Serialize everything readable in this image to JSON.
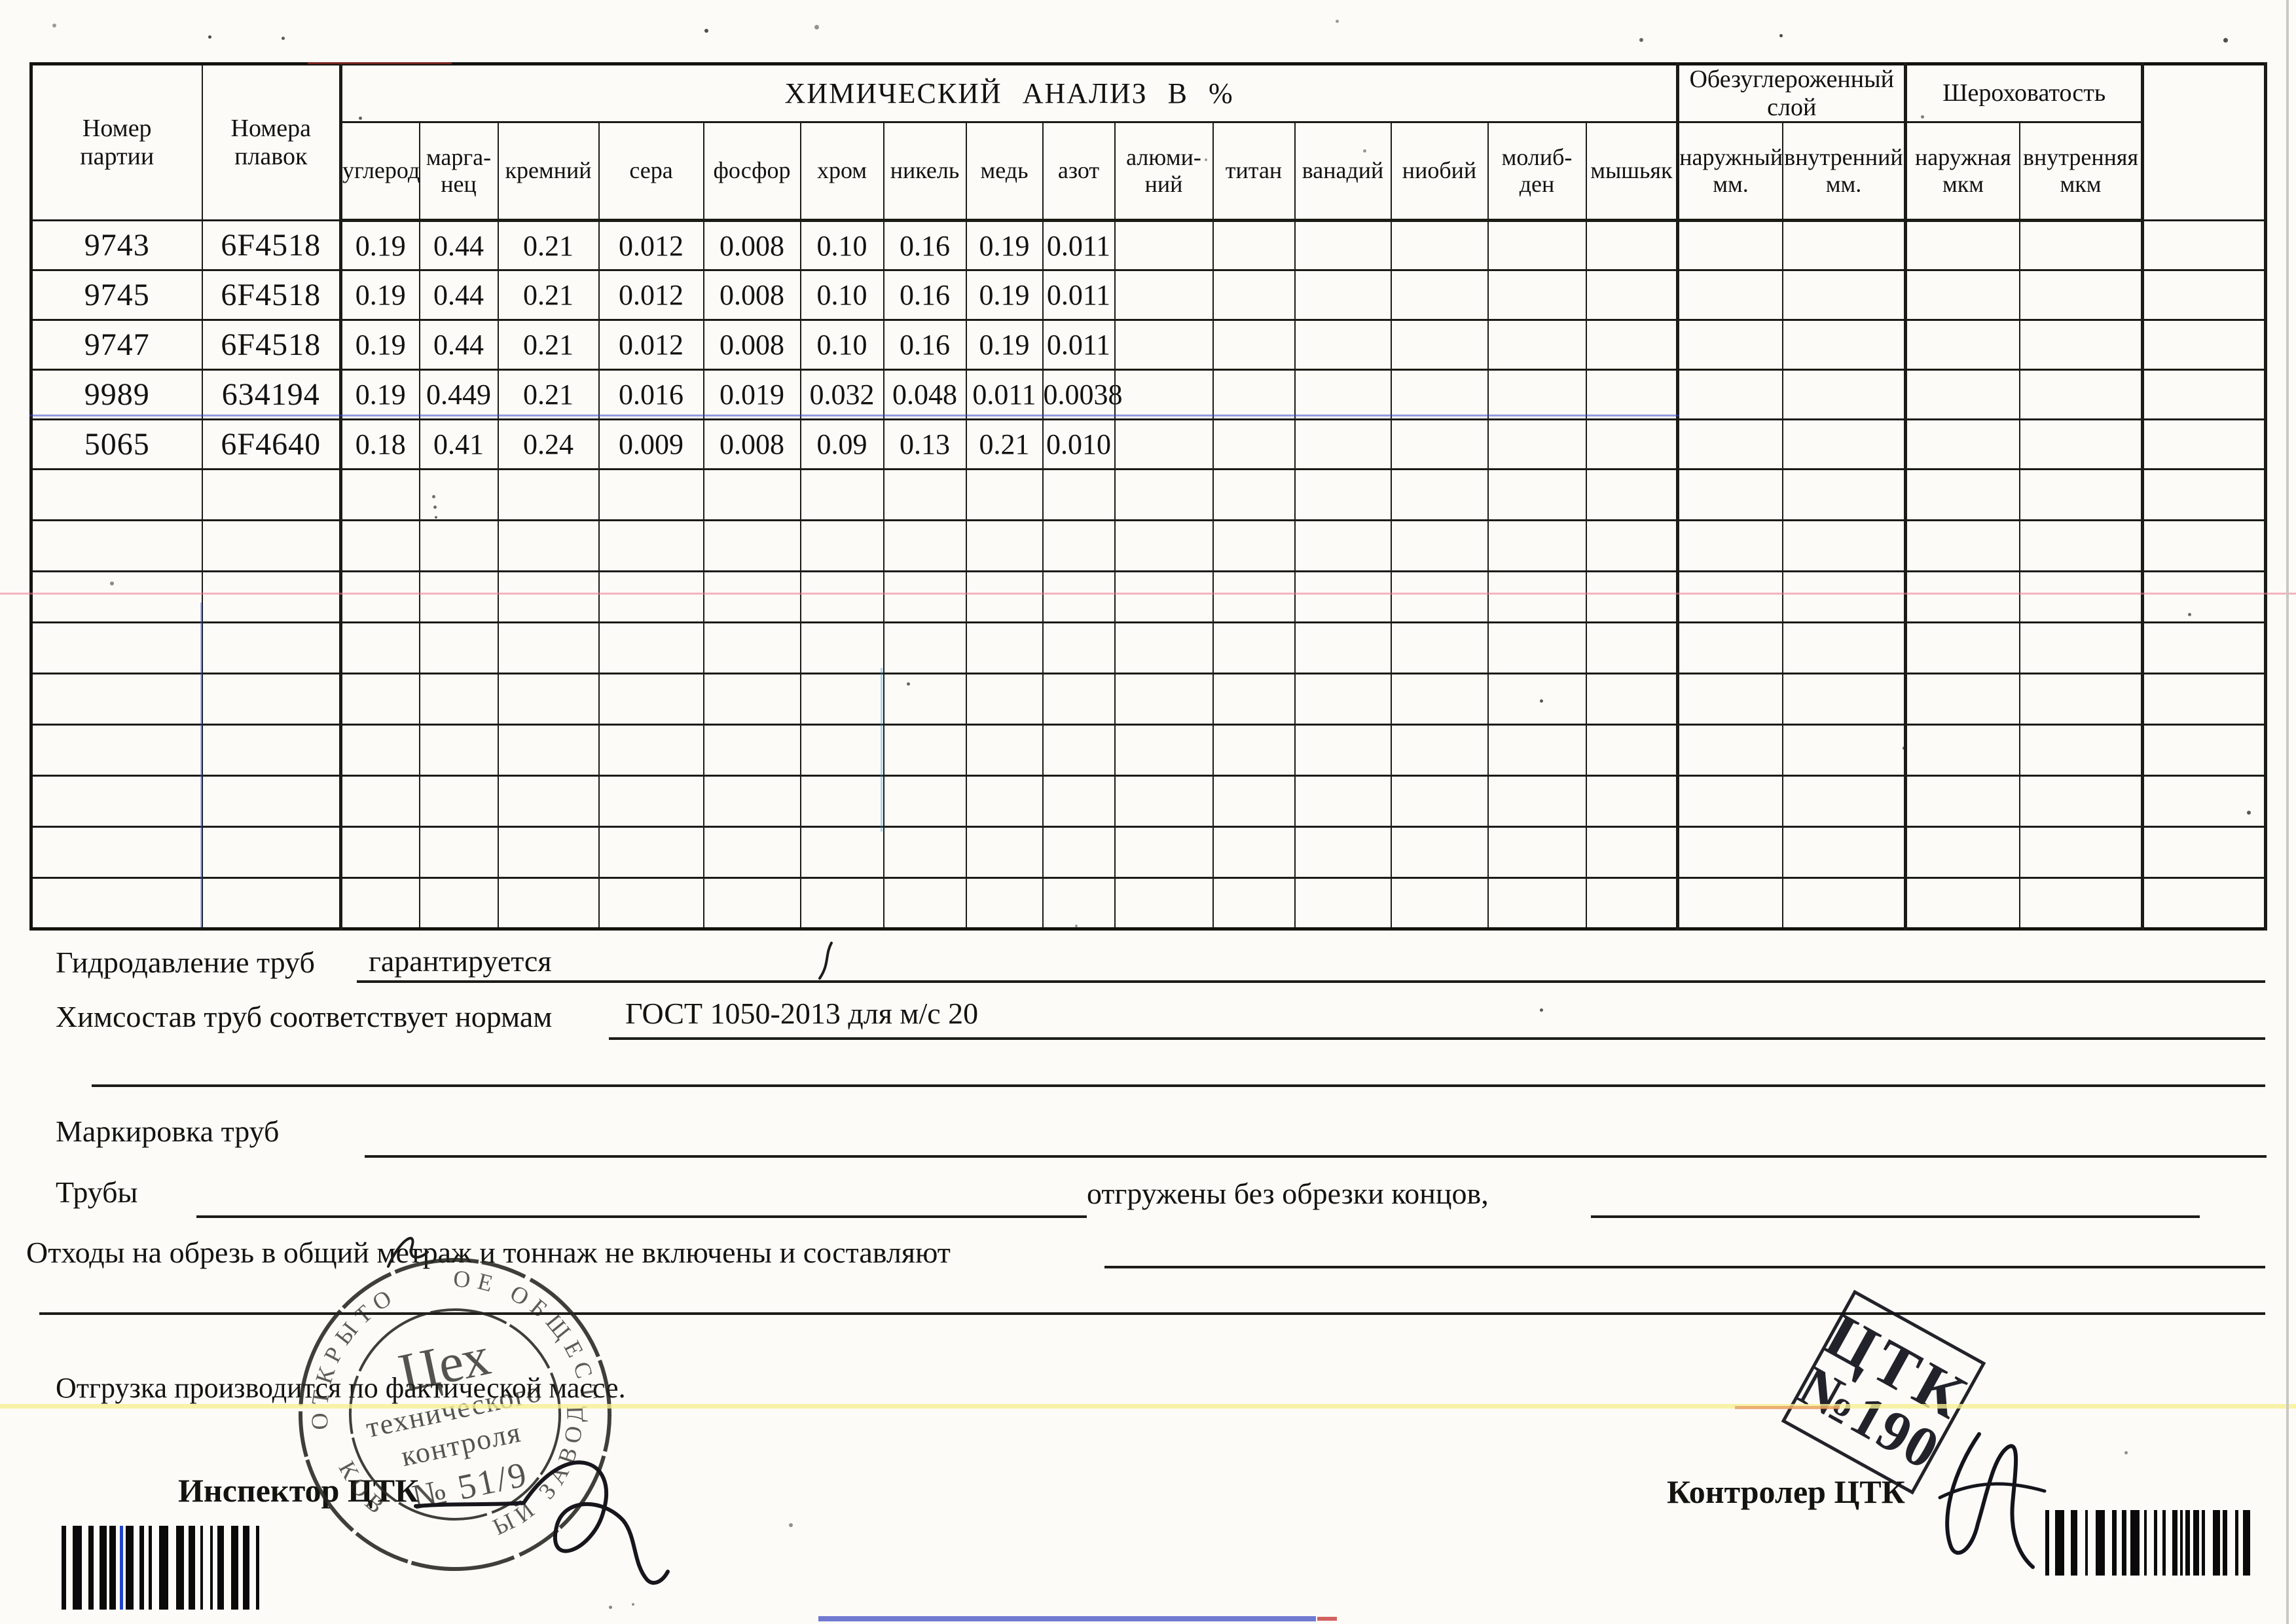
{
  "table": {
    "party_col_label": "Номер\nпартии",
    "melts_col_label": "Номера\nплавок",
    "chem_group_label": "ХИМИЧЕСКИЙ АНАЛИЗ В %",
    "chem_columns": [
      "углерод",
      "марга-\nнец",
      "кремний",
      "сера",
      "фосфор",
      "хром",
      "никель",
      "медь",
      "азот",
      "алюми-\nний",
      "титан",
      "ванадий",
      "ниобий",
      "молиб-\nден",
      "мышьяк"
    ],
    "decarb_group_label": "Обезуглероженный\nслой",
    "decarb_columns": [
      "наружный\nмм.",
      "внутренний\nмм."
    ],
    "rough_group_label": "Шероховатость",
    "rough_columns": [
      "наружная\nмкм",
      "внутренняя\nмкм"
    ],
    "rows": [
      {
        "party": "9743",
        "melt": "6F4518",
        "values": [
          "0.19",
          "0.44",
          "0.21",
          "0.012",
          "0.008",
          "0.10",
          "0.16",
          "0.19",
          "0.011"
        ]
      },
      {
        "party": "9745",
        "melt": "6F4518",
        "values": [
          "0.19",
          "0.44",
          "0.21",
          "0.012",
          "0.008",
          "0.10",
          "0.16",
          "0.19",
          "0.011"
        ]
      },
      {
        "party": "9747",
        "melt": "6F4518",
        "values": [
          "0.19",
          "0.44",
          "0.21",
          "0.012",
          "0.008",
          "0.10",
          "0.16",
          "0.19",
          "0.011"
        ]
      },
      {
        "party": "9989",
        "melt": "634194",
        "values": [
          "0.19",
          "0.449",
          "0.21",
          "0.016",
          "0.019",
          "0.032",
          "0.048",
          "0.011",
          "0.0038"
        ]
      },
      {
        "party": "5065",
        "melt": "6F4640",
        "values": [
          "0.18",
          "0.41",
          "0.24",
          "0.009",
          "0.008",
          "0.09",
          "0.13",
          "0.21",
          "0.010"
        ]
      }
    ],
    "empty_row_count": 9
  },
  "notes": {
    "hydro_label": "Гидродавление труб",
    "hydro_value": "гарантируется",
    "chem_label": "Химсостав труб соответствует нормам",
    "chem_value": "ГОСТ 1050-2013 для м/с 20",
    "marking_label": "Маркировка труб",
    "pipes_label": "Трубы",
    "pipes_value": "отгружены без обрезки концов,",
    "waste_label": "Отходы на обрезь в общий метраж и тоннаж не включены и составляют",
    "shipping_label": "Отгрузка производится по фактической массе."
  },
  "signatures": {
    "inspector_label": "Инспектор ЦТК",
    "controller_label": "Контролер ЦТК"
  },
  "stamps": {
    "round_stamp": {
      "line1": "Цех",
      "line2": "технического",
      "line3": "контроля",
      "line4": "№ 51/9",
      "ring_fragments": [
        "ОТКРЫТО",
        "ОЕ ОБЩЕСТВ",
        "КОВ",
        "ЫЙ ЗАВОД"
      ]
    },
    "corner_stamp": {
      "line1": "ЦТК",
      "line2": "№190"
    }
  }
}
